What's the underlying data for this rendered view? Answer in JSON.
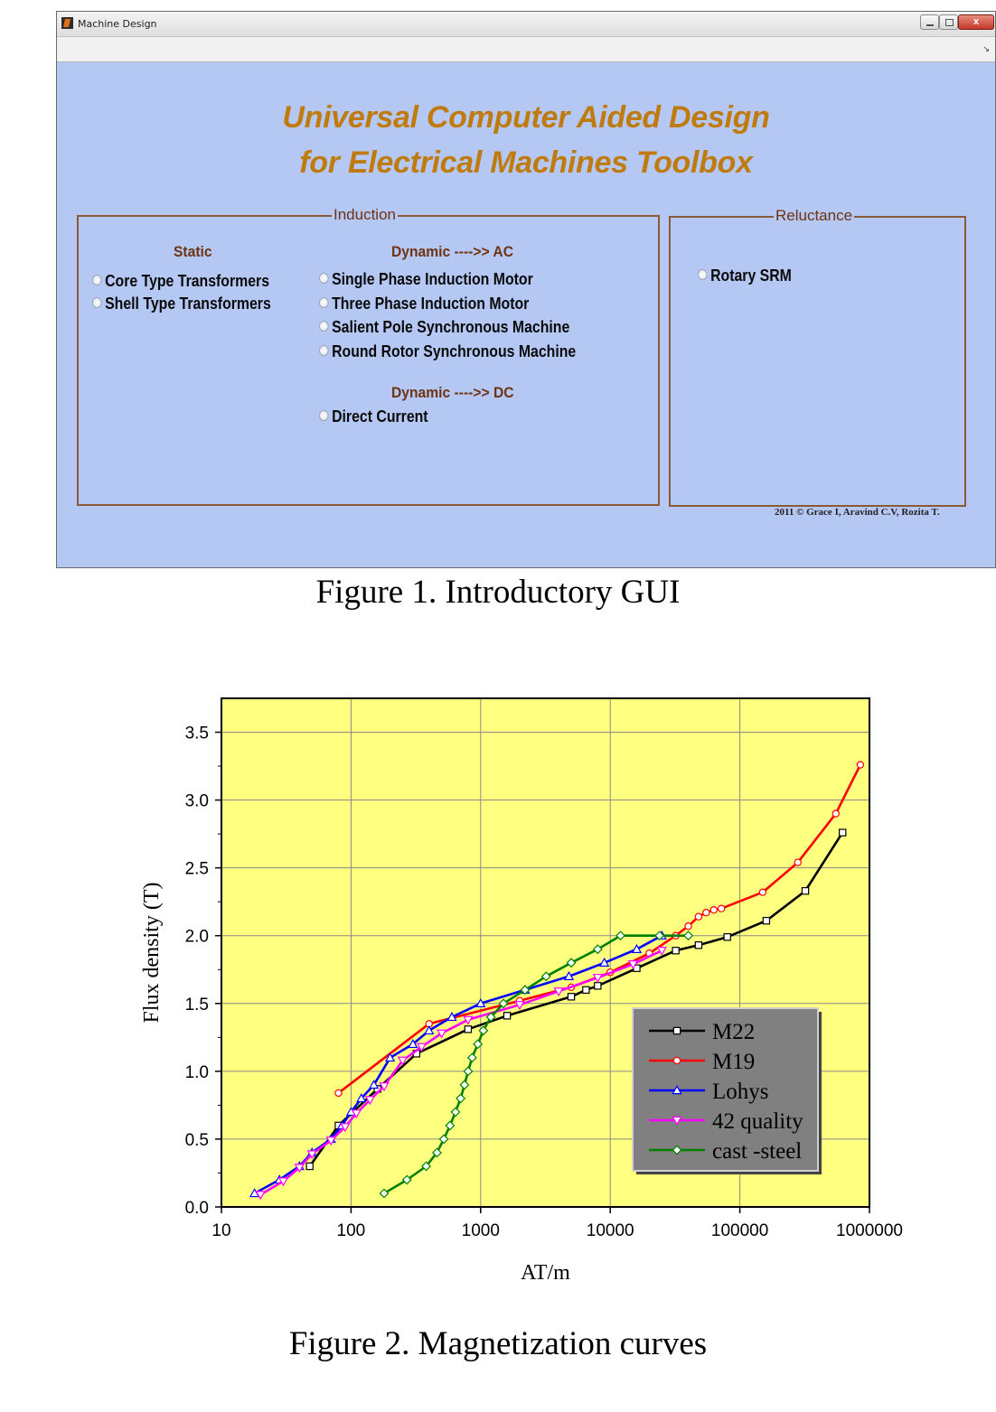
{
  "window": {
    "title": "Machine Design",
    "close_label": "x",
    "heading_line1": "Universal Computer Aided Design",
    "heading_line2": "for Electrical Machines Toolbox",
    "induction": {
      "title": "Induction",
      "static_heading": "Static",
      "static_options": [
        "Core Type Transformers",
        "Shell Type Transformers"
      ],
      "ac_heading": "Dynamic ---->> AC",
      "ac_options": [
        "Single Phase Induction Motor",
        "Three Phase Induction Motor",
        "Salient Pole Synchronous Machine",
        "Round Rotor Synchronous Machine"
      ],
      "dc_heading": "Dynamic ---->> DC",
      "dc_options": [
        "Direct Current"
      ]
    },
    "reluctance": {
      "title": "Reluctance",
      "options": [
        "Rotary SRM"
      ]
    },
    "copyright": "2011 © Grace I, Aravind C.V, Rozita T."
  },
  "captions": {
    "figure1": "Figure 1. Introductory GUI",
    "figure2": "Figure 2. Magnetization curves"
  },
  "chart_data": {
    "type": "line",
    "xlabel": "AT/m",
    "ylabel": "Flux density (T)",
    "x_scale": "log",
    "xlim": [
      10,
      1000000
    ],
    "ylim": [
      0,
      3.75
    ],
    "x_ticks": [
      10,
      100,
      1000,
      10000,
      100000,
      1000000
    ],
    "x_tick_labels": [
      "10",
      "100",
      "1000",
      "10000",
      "100000",
      "1000000"
    ],
    "y_ticks": [
      0,
      0.5,
      1.0,
      1.5,
      2.0,
      2.5,
      3.0,
      3.5
    ],
    "y_tick_labels": [
      "0.0",
      "0.5",
      "1.0",
      "1.5",
      "2.0",
      "2.5",
      "3.0",
      "3.5"
    ],
    "grid": true,
    "legend_position": "lower-right",
    "background": "#ffff80",
    "series": [
      {
        "name": "M22",
        "color": "#000000",
        "marker": "square",
        "x": [
          48,
          80,
          160,
          320,
          800,
          1600,
          5000,
          6500,
          8000,
          16000,
          32000,
          48000,
          80000,
          160000,
          320000,
          620000
        ],
        "y": [
          0.3,
          0.6,
          0.87,
          1.13,
          1.31,
          1.41,
          1.55,
          1.6,
          1.63,
          1.76,
          1.89,
          1.93,
          1.99,
          2.11,
          2.33,
          2.76
        ]
      },
      {
        "name": "M19",
        "color": "#ff0000",
        "marker": "circle",
        "x": [
          80,
          400,
          2000,
          5000,
          10000,
          20000,
          32000,
          40000,
          48000,
          55000,
          63000,
          72000,
          150000,
          280000,
          550000,
          850000
        ],
        "y": [
          0.84,
          1.35,
          1.52,
          1.62,
          1.73,
          1.87,
          2.0,
          2.07,
          2.14,
          2.17,
          2.19,
          2.2,
          2.32,
          2.54,
          2.9,
          3.26
        ]
      },
      {
        "name": "Lohys",
        "color": "#0000ff",
        "marker": "triangle-up",
        "x": [
          18,
          28,
          40,
          50,
          70,
          85,
          100,
          120,
          150,
          200,
          300,
          400,
          600,
          1000,
          2200,
          4800,
          9000,
          16000,
          25000
        ],
        "y": [
          0.1,
          0.2,
          0.3,
          0.4,
          0.5,
          0.6,
          0.7,
          0.8,
          0.9,
          1.1,
          1.2,
          1.3,
          1.4,
          1.5,
          1.6,
          1.7,
          1.8,
          1.9,
          2.0
        ]
      },
      {
        "name": "42 quality",
        "color": "#ff00ff",
        "marker": "triangle-down",
        "x": [
          20,
          30,
          40,
          50,
          70,
          90,
          110,
          140,
          180,
          250,
          350,
          500,
          800,
          2000,
          4000,
          8000,
          15000,
          25000
        ],
        "y": [
          0.09,
          0.19,
          0.29,
          0.39,
          0.49,
          0.59,
          0.69,
          0.79,
          0.89,
          1.08,
          1.18,
          1.28,
          1.38,
          1.49,
          1.59,
          1.69,
          1.79,
          1.89
        ]
      },
      {
        "name": "cast -steel",
        "color": "#008000",
        "marker": "diamond",
        "x": [
          180,
          270,
          380,
          460,
          520,
          580,
          640,
          700,
          750,
          800,
          860,
          950,
          1050,
          1200,
          1500,
          2200,
          3200,
          5000,
          8000,
          12000,
          24000,
          40000
        ],
        "y": [
          0.1,
          0.2,
          0.3,
          0.4,
          0.5,
          0.6,
          0.7,
          0.8,
          0.9,
          1.0,
          1.1,
          1.2,
          1.3,
          1.4,
          1.5,
          1.6,
          1.7,
          1.8,
          1.9,
          2.0,
          2.0,
          2.0
        ]
      }
    ]
  }
}
